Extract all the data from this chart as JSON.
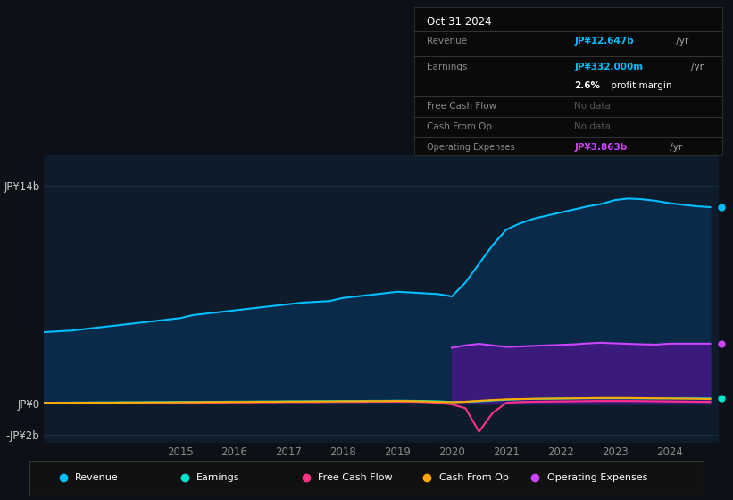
{
  "bg_color": "#0d1117",
  "plot_bg_color": "#0d1b2a",
  "title": "Oct 31 2024",
  "x_years": [
    2012.0,
    2012.25,
    2012.5,
    2012.75,
    2013.0,
    2013.25,
    2013.5,
    2013.75,
    2014.0,
    2014.25,
    2014.5,
    2014.75,
    2015.0,
    2015.25,
    2015.5,
    2015.75,
    2016.0,
    2016.25,
    2016.5,
    2016.75,
    2017.0,
    2017.25,
    2017.5,
    2017.75,
    2018.0,
    2018.25,
    2018.5,
    2018.75,
    2019.0,
    2019.25,
    2019.5,
    2019.75,
    2020.0,
    2020.25,
    2020.5,
    2020.75,
    2021.0,
    2021.25,
    2021.5,
    2021.75,
    2022.0,
    2022.25,
    2022.5,
    2022.75,
    2023.0,
    2023.25,
    2023.5,
    2023.75,
    2024.0,
    2024.5,
    2024.75
  ],
  "revenue": [
    4.5,
    4.55,
    4.6,
    4.65,
    4.7,
    4.8,
    4.9,
    5.0,
    5.1,
    5.2,
    5.3,
    5.4,
    5.5,
    5.7,
    5.8,
    5.9,
    6.0,
    6.1,
    6.2,
    6.3,
    6.4,
    6.5,
    6.55,
    6.6,
    6.8,
    6.9,
    7.0,
    7.1,
    7.2,
    7.15,
    7.1,
    7.05,
    6.9,
    7.8,
    9.0,
    10.2,
    11.2,
    11.6,
    11.9,
    12.1,
    12.3,
    12.5,
    12.7,
    12.85,
    13.1,
    13.2,
    13.15,
    13.05,
    12.9,
    12.7,
    12.647
  ],
  "earnings": [
    0.05,
    0.05,
    0.06,
    0.06,
    0.07,
    0.07,
    0.08,
    0.08,
    0.09,
    0.09,
    0.1,
    0.1,
    0.11,
    0.11,
    0.12,
    0.12,
    0.13,
    0.13,
    0.14,
    0.14,
    0.15,
    0.15,
    0.16,
    0.16,
    0.17,
    0.17,
    0.18,
    0.18,
    0.19,
    0.18,
    0.17,
    0.15,
    0.1,
    0.12,
    0.15,
    0.2,
    0.25,
    0.28,
    0.3,
    0.31,
    0.32,
    0.33,
    0.34,
    0.34,
    0.34,
    0.34,
    0.33,
    0.33,
    0.332,
    0.332,
    0.332
  ],
  "free_cash_flow": [
    0.02,
    0.02,
    0.03,
    0.03,
    0.04,
    0.04,
    0.04,
    0.04,
    0.05,
    0.05,
    0.05,
    0.05,
    0.06,
    0.06,
    0.07,
    0.07,
    0.08,
    0.08,
    0.09,
    0.09,
    0.1,
    0.1,
    0.1,
    0.11,
    0.11,
    0.11,
    0.12,
    0.12,
    0.13,
    0.12,
    0.1,
    0.05,
    -0.05,
    -0.3,
    -1.8,
    -0.6,
    0.05,
    0.1,
    0.12,
    0.13,
    0.14,
    0.15,
    0.16,
    0.17,
    0.17,
    0.17,
    0.16,
    0.15,
    0.14,
    0.12,
    0.11
  ],
  "cash_from_op": [
    0.04,
    0.04,
    0.05,
    0.05,
    0.05,
    0.06,
    0.06,
    0.06,
    0.07,
    0.07,
    0.08,
    0.08,
    0.09,
    0.09,
    0.1,
    0.1,
    0.11,
    0.11,
    0.12,
    0.12,
    0.13,
    0.13,
    0.14,
    0.14,
    0.15,
    0.15,
    0.16,
    0.16,
    0.17,
    0.16,
    0.14,
    0.11,
    0.09,
    0.12,
    0.18,
    0.23,
    0.27,
    0.29,
    0.31,
    0.32,
    0.33,
    0.34,
    0.35,
    0.36,
    0.36,
    0.36,
    0.35,
    0.34,
    0.33,
    0.31,
    0.29
  ],
  "op_expenses_x": [
    2020.0,
    2020.25,
    2020.5,
    2020.75,
    2021.0,
    2021.25,
    2021.5,
    2021.75,
    2022.0,
    2022.25,
    2022.5,
    2022.75,
    2023.0,
    2023.25,
    2023.5,
    2023.75,
    2024.0,
    2024.5,
    2024.75
  ],
  "op_expenses_y": [
    3.6,
    3.75,
    3.85,
    3.75,
    3.65,
    3.68,
    3.72,
    3.75,
    3.78,
    3.82,
    3.88,
    3.92,
    3.88,
    3.85,
    3.82,
    3.8,
    3.863,
    3.863,
    3.863
  ],
  "revenue_color": "#00bfff",
  "earnings_color": "#00e5cc",
  "fcf_color": "#ff3388",
  "cash_op_color": "#ffaa00",
  "op_expenses_color": "#cc44ff",
  "revenue_fill": "#0a2a4a",
  "op_expenses_fill": "#3a1a7a",
  "ylim": [
    -2.5,
    16.0
  ],
  "y_label_14": 14.0,
  "y_label_0": 0.0,
  "y_label_neg2": -2.0,
  "xtick_years": [
    2015,
    2016,
    2017,
    2018,
    2019,
    2020,
    2021,
    2022,
    2023,
    2024
  ],
  "legend_items": [
    "Revenue",
    "Earnings",
    "Free Cash Flow",
    "Cash From Op",
    "Operating Expenses"
  ],
  "legend_colors": [
    "#00bfff",
    "#00e5cc",
    "#ff3388",
    "#ffaa00",
    "#cc44ff"
  ]
}
